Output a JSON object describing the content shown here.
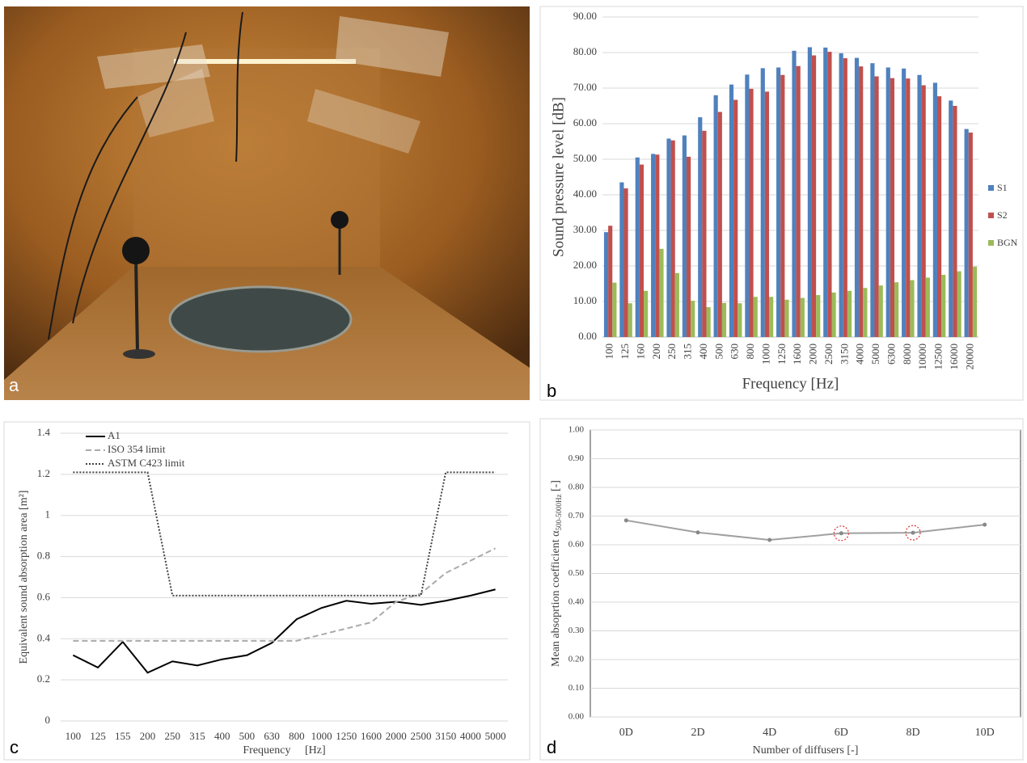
{
  "photo": {
    "panel_label": "a"
  },
  "chart_data": [
    {
      "type": "bar",
      "panel_label": "b",
      "xlabel": "Frequency [Hz]",
      "ylabel": "Sound pressure level [dB]",
      "categories": [
        "100",
        "125",
        "160",
        "200",
        "250",
        "315",
        "400",
        "500",
        "630",
        "800",
        "1000",
        "1250",
        "1600",
        "2000",
        "2500",
        "3150",
        "4000",
        "5000",
        "6300",
        "8000",
        "10000",
        "12500",
        "16000",
        "20000"
      ],
      "series": [
        {
          "name": "S1",
          "color": "#4f81bd",
          "values": [
            29.5,
            43.5,
            50.5,
            51.5,
            55.8,
            56.7,
            61.8,
            68,
            71,
            73.8,
            75.6,
            75.8,
            80.5,
            81.5,
            81.4,
            79.8,
            78.5,
            77,
            75.8,
            75.5,
            73.7,
            71.5,
            66.5,
            58.5
          ]
        },
        {
          "name": "S2",
          "color": "#c0504d",
          "values": [
            31.3,
            41.8,
            48.5,
            51.3,
            55.3,
            50.7,
            58,
            63.3,
            66.7,
            69.8,
            69,
            73.7,
            76.2,
            79.2,
            80.2,
            78.4,
            76.1,
            73.3,
            72.8,
            72.7,
            70.8,
            67.7,
            65,
            57.5
          ]
        },
        {
          "name": "BGN",
          "color": "#9bbb59",
          "values": [
            15.3,
            9.5,
            13,
            24.8,
            18,
            10.2,
            8.4,
            9.6,
            9.5,
            11.3,
            11.3,
            10.5,
            11,
            11.8,
            12.5,
            13,
            13.8,
            14.5,
            15.4,
            16,
            16.7,
            17.5,
            18.5,
            19.8
          ]
        }
      ],
      "ylim": [
        0,
        90
      ],
      "yticks": [
        {
          "value": 0,
          "label": "0.00"
        },
        {
          "value": 10,
          "label": "10.00"
        },
        {
          "value": 20,
          "label": "20.00"
        },
        {
          "value": 30,
          "label": "30.00"
        },
        {
          "value": 40,
          "label": "40.00"
        },
        {
          "value": 50,
          "label": "50.00"
        },
        {
          "value": 60,
          "label": "60.00"
        },
        {
          "value": 70,
          "label": "70.00"
        },
        {
          "value": 80,
          "label": "80.00"
        },
        {
          "value": 90,
          "label": "90.00"
        }
      ],
      "grid": true,
      "legend": "right"
    },
    {
      "type": "line",
      "panel_label": "c",
      "xlabel": "Frequency     [Hz]",
      "ylabel": "Equivalent sound absorption area [m²]",
      "categories": [
        "100",
        "125",
        "155",
        "200",
        "250",
        "315",
        "400",
        "500",
        "630",
        "800",
        "1000",
        "1250",
        "1600",
        "2000",
        "2500",
        "3150",
        "4000",
        "5000"
      ],
      "series": [
        {
          "name": "A1",
          "color": "#000000",
          "dash": "solid",
          "values": [
            0.32,
            0.26,
            0.385,
            0.235,
            0.29,
            0.27,
            0.3,
            0.32,
            0.38,
            0.495,
            0.55,
            0.585,
            0.57,
            0.58,
            0.565,
            0.585,
            0.61,
            0.64
          ]
        },
        {
          "name": "ISO 354 limit",
          "color": "#aaaaaa",
          "dash": "dashed",
          "values": [
            0.39,
            0.39,
            0.39,
            0.39,
            0.39,
            0.39,
            0.39,
            0.39,
            0.39,
            0.39,
            0.42,
            0.45,
            0.48,
            0.58,
            0.62,
            0.72,
            0.78,
            0.84
          ]
        },
        {
          "name": "ASTM C423 limit",
          "color": "#444444",
          "dash": "dotted",
          "values": [
            1.21,
            1.21,
            1.21,
            1.21,
            0.61,
            0.61,
            0.61,
            0.61,
            0.61,
            0.61,
            0.61,
            0.61,
            0.61,
            0.61,
            0.61,
            1.21,
            1.21,
            1.21
          ]
        }
      ],
      "ylim": [
        0,
        1.4
      ],
      "yticks": [
        0,
        0.2,
        0.4,
        0.6,
        0.8,
        1,
        1.2,
        1.4
      ],
      "grid": true,
      "legend": "top-left"
    },
    {
      "type": "line",
      "panel_label": "d",
      "xlabel": "Number of diffusers [-]",
      "ylabel": [
        "Mean absoprtion coefficient α",
        "500-5000Hz",
        " [-]"
      ],
      "categories": [
        "0D",
        "2D",
        "4D",
        "6D",
        "8D",
        "10D"
      ],
      "values": [
        0.685,
        0.643,
        0.617,
        0.64,
        0.642,
        0.67
      ],
      "color": "#a0a0a0",
      "highlighted_points": [
        3,
        4
      ],
      "highlight_color": "#e03030",
      "ylim": [
        0,
        1
      ],
      "yticks": [
        {
          "value": 0,
          "label": "0.00"
        },
        {
          "value": 0.1,
          "label": "0.10"
        },
        {
          "value": 0.2,
          "label": "0.20"
        },
        {
          "value": 0.3,
          "label": "0.30"
        },
        {
          "value": 0.4,
          "label": "0.40"
        },
        {
          "value": 0.5,
          "label": "0.50"
        },
        {
          "value": 0.6,
          "label": "0.60"
        },
        {
          "value": 0.7,
          "label": "0.70"
        },
        {
          "value": 0.8,
          "label": "0.80"
        },
        {
          "value": 0.9,
          "label": "0.90"
        },
        {
          "value": 1,
          "label": "1.00"
        }
      ],
      "grid": true
    }
  ]
}
